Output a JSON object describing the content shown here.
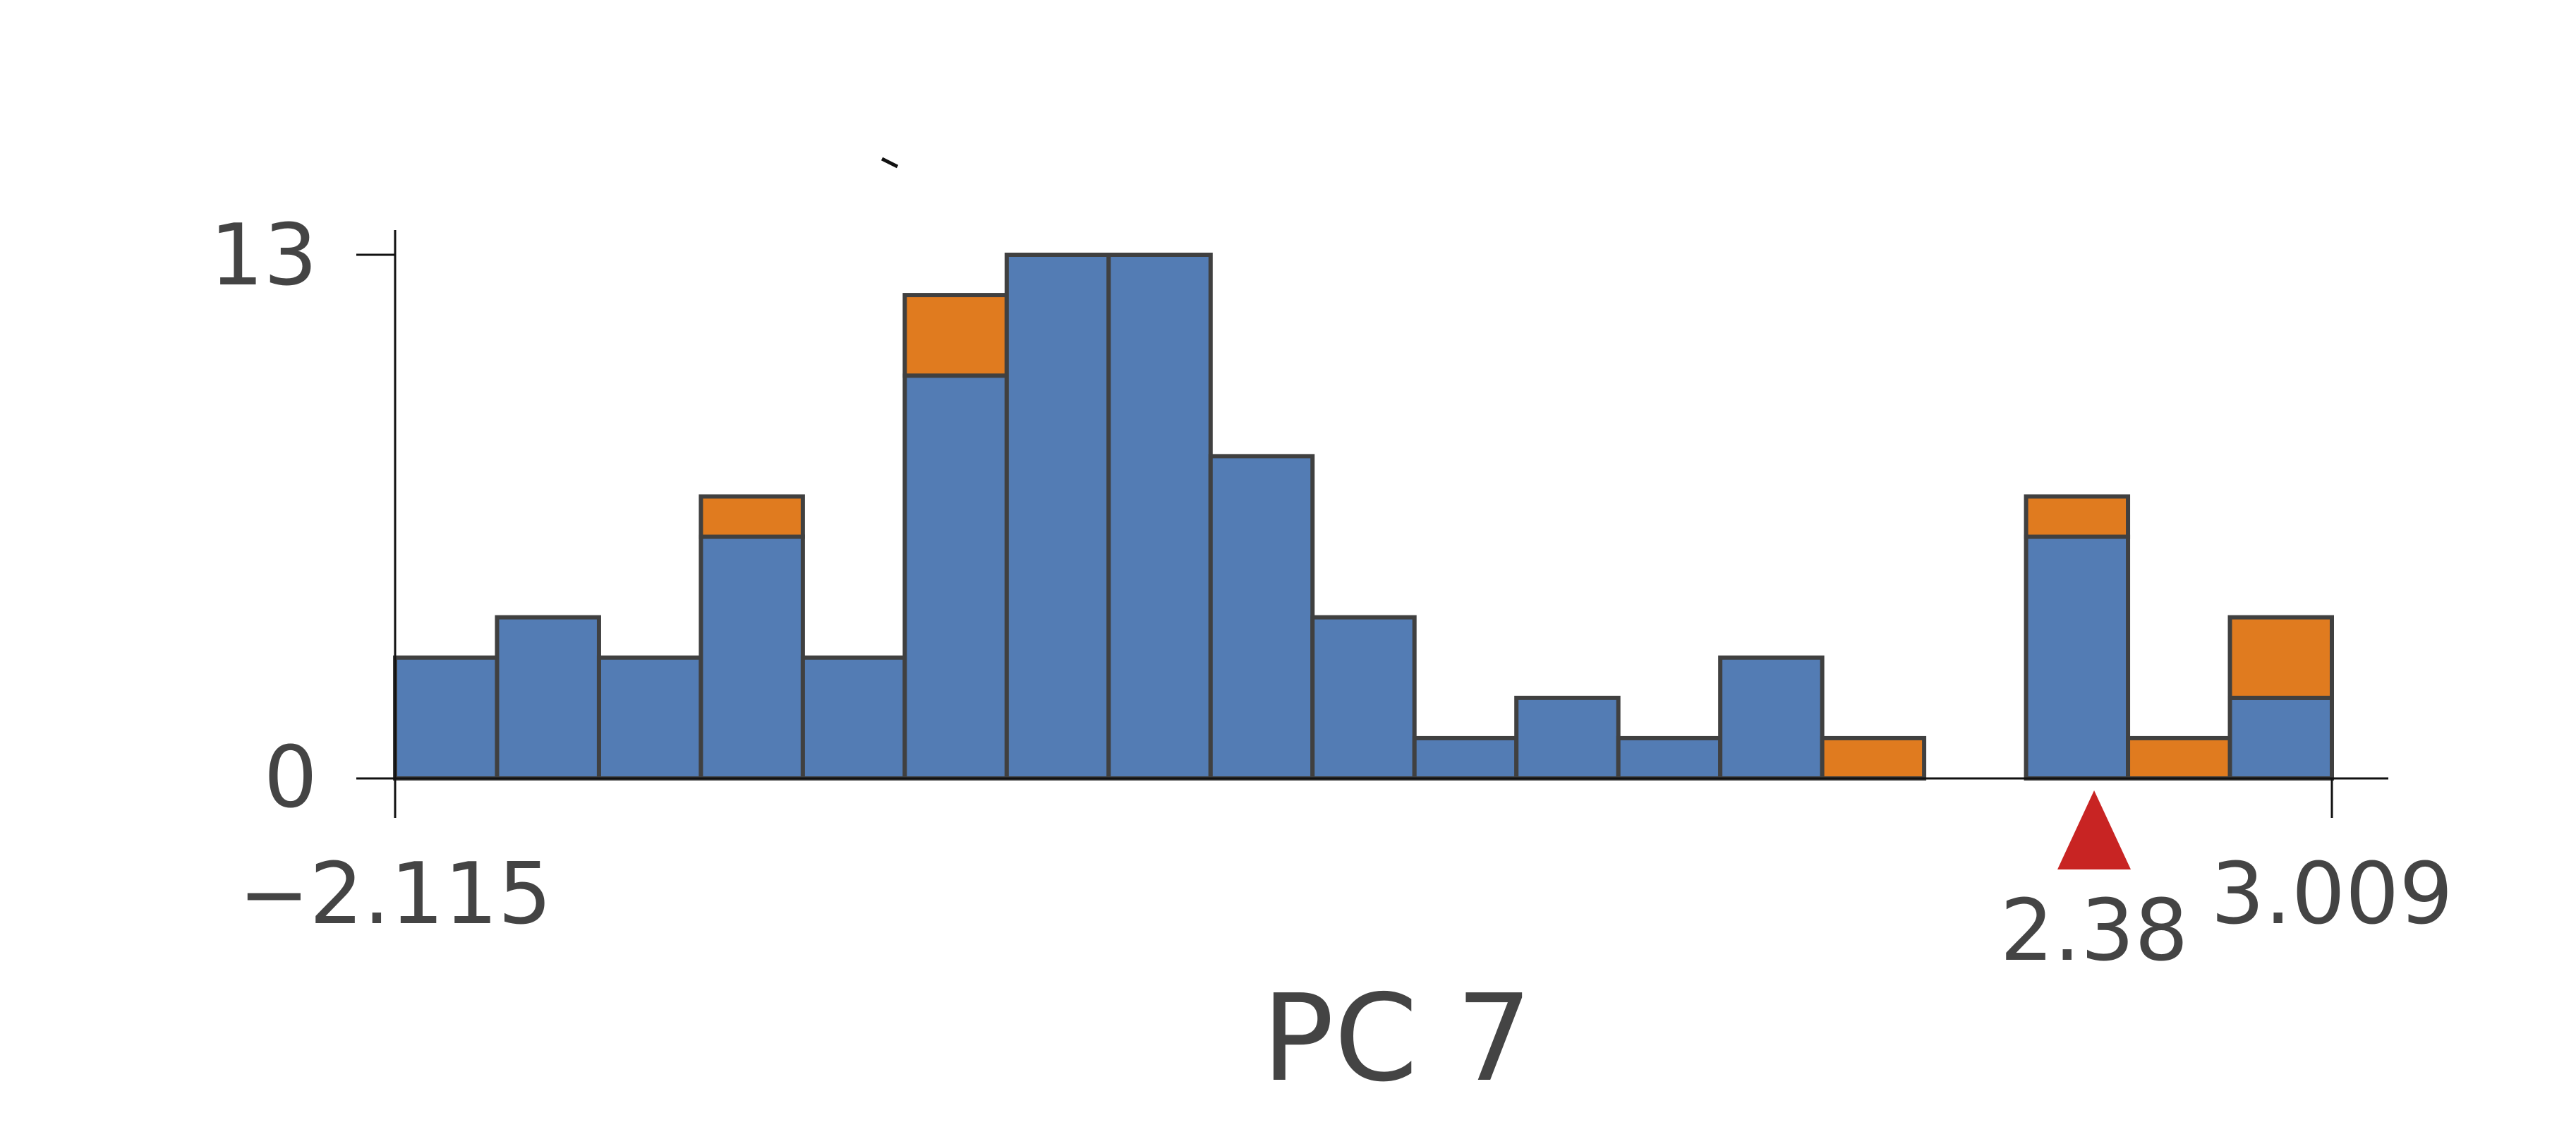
{
  "chart_data": {
    "type": "bar",
    "stacked": true,
    "xlabel": "PC 7",
    "ylabel": "",
    "xlim": [
      -2.115,
      3.009
    ],
    "ylim": [
      0,
      13
    ],
    "x_tick_labels": [
      "−2.115",
      "3.009"
    ],
    "y_tick_labels": [
      "0",
      "13"
    ],
    "bins": 19,
    "series": [
      {
        "color": "#537cb4",
        "values": [
          3,
          4,
          3,
          6,
          3,
          10,
          13,
          13,
          8,
          4,
          1,
          2,
          1,
          3,
          0,
          0,
          6,
          0,
          2
        ]
      },
      {
        "color": "#e07b1f",
        "values": [
          0,
          0,
          0,
          1,
          0,
          2,
          0,
          0,
          0,
          0,
          0,
          0,
          0,
          0,
          1,
          0,
          1,
          1,
          2
        ]
      }
    ],
    "marker": {
      "value": 2.38,
      "label": "2.38",
      "color": "#c82423",
      "shape": "triangle-up"
    },
    "grid": false
  }
}
